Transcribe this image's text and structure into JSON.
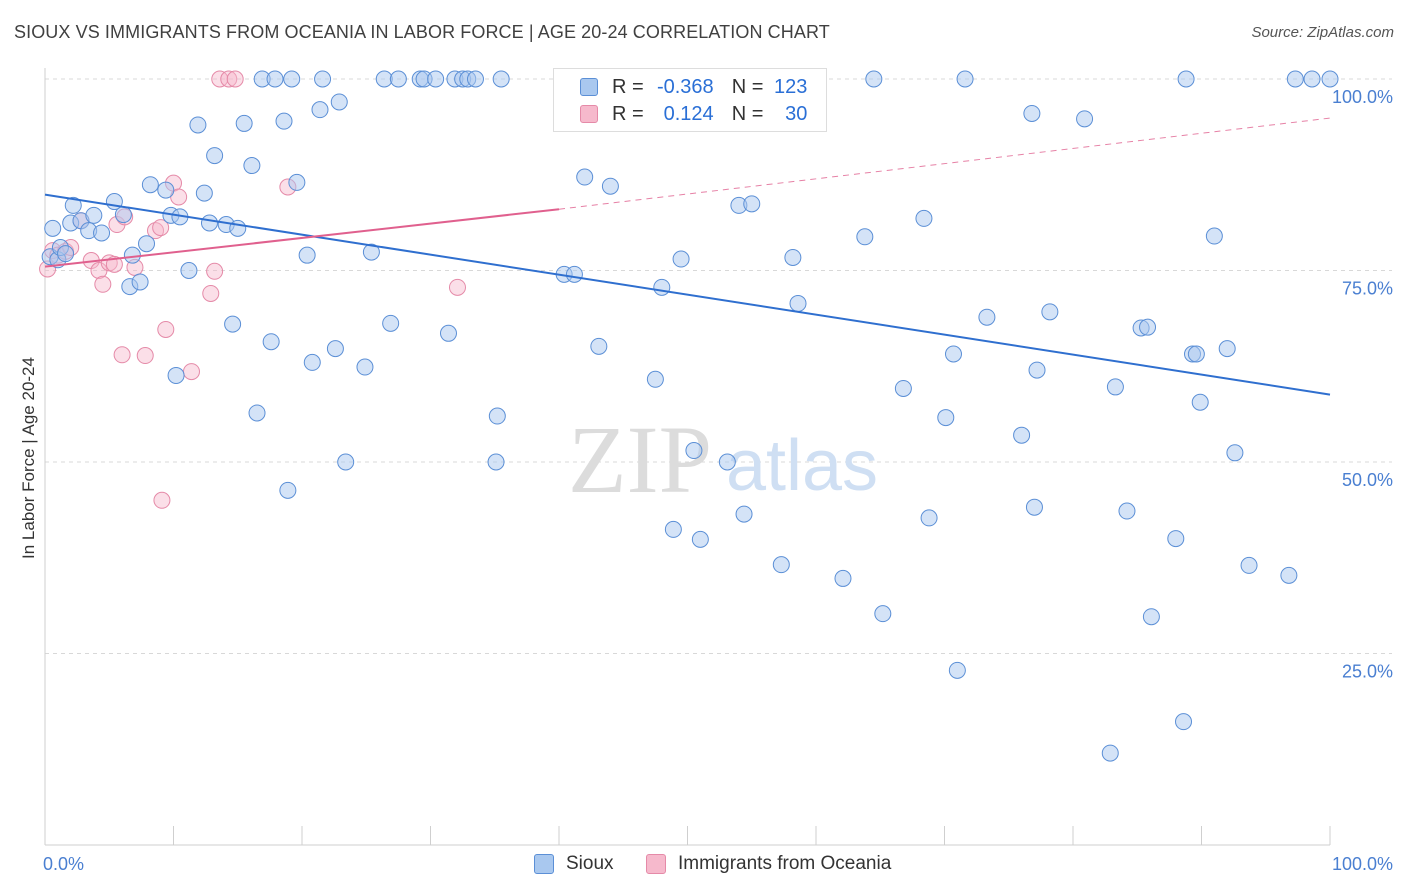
{
  "title": "SIOUX VS IMMIGRANTS FROM OCEANIA IN LABOR FORCE | AGE 20-24 CORRELATION CHART",
  "source": "Source: ZipAtlas.com",
  "watermark": {
    "zip": "ZIP",
    "atlas": "atlas"
  },
  "legend": {
    "rows": [
      {
        "r_label": "R =",
        "r_value": "-0.368",
        "n_label": "N =",
        "n_value": "123"
      },
      {
        "r_label": "R =",
        "r_value": "0.124",
        "n_label": "N =",
        "n_value": "30"
      }
    ]
  },
  "bottom_legend": {
    "sioux": "Sioux",
    "oceania": "Immigrants from Oceania"
  },
  "colors": {
    "sioux_fill": "#a9c8ef",
    "sioux_stroke": "#5b8fd6",
    "sioux_line": "#2f6fcf",
    "oceania_fill": "#f6b9cc",
    "oceania_stroke": "#e58aa8",
    "oceania_line": "#e0608e",
    "axis_text": "#4a7fd1",
    "grid": "#d8d8d8"
  },
  "chart_data": {
    "type": "scatter",
    "title": "SIOUX VS IMMIGRANTS FROM OCEANIA IN LABOR FORCE | AGE 20-24 CORRELATION CHART",
    "xlabel": "",
    "ylabel": "In Labor Force | Age 20-24",
    "xlim": [
      0,
      100
    ],
    "ylim": [
      0,
      100
    ],
    "x_tick_labels": [
      {
        "value": 0,
        "label": "0.0%"
      },
      {
        "value": 100,
        "label": "100.0%"
      }
    ],
    "y_tick_labels": [
      {
        "value": 100,
        "label": "100.0%"
      },
      {
        "value": 75,
        "label": "75.0%"
      },
      {
        "value": 50,
        "label": "50.0%"
      },
      {
        "value": 25,
        "label": "25.0%"
      }
    ],
    "grid": true,
    "series": [
      {
        "name": "Sioux",
        "R": -0.368,
        "N": 123,
        "trend": {
          "x": [
            0,
            100
          ],
          "y": [
            84.9,
            58.8
          ]
        },
        "points": [
          [
            0.4,
            76.8
          ],
          [
            0.6,
            80.5
          ],
          [
            1.0,
            76.4
          ],
          [
            1.2,
            78.0
          ],
          [
            1.6,
            77.2
          ],
          [
            2.0,
            81.2
          ],
          [
            2.2,
            83.5
          ],
          [
            2.8,
            81.5
          ],
          [
            3.4,
            80.2
          ],
          [
            3.8,
            82.2
          ],
          [
            4.4,
            79.9
          ],
          [
            5.4,
            84.0
          ],
          [
            6.1,
            82.3
          ],
          [
            6.6,
            72.9
          ],
          [
            6.8,
            77.0
          ],
          [
            7.4,
            73.5
          ],
          [
            7.9,
            78.5
          ],
          [
            8.2,
            86.2
          ],
          [
            9.4,
            85.5
          ],
          [
            9.8,
            82.2
          ],
          [
            10.2,
            61.3
          ],
          [
            10.5,
            82.0
          ],
          [
            11.2,
            75.0
          ],
          [
            11.9,
            94.0
          ],
          [
            12.4,
            85.1
          ],
          [
            12.8,
            81.2
          ],
          [
            13.2,
            90.0
          ],
          [
            14.1,
            81.0
          ],
          [
            14.6,
            68.0
          ],
          [
            15.0,
            80.5
          ],
          [
            15.5,
            94.2
          ],
          [
            16.1,
            88.7
          ],
          [
            16.5,
            56.4
          ],
          [
            16.9,
            100.0
          ],
          [
            17.6,
            65.7
          ],
          [
            17.9,
            100.0
          ],
          [
            18.6,
            94.5
          ],
          [
            18.9,
            46.3
          ],
          [
            19.2,
            100.0
          ],
          [
            19.6,
            86.5
          ],
          [
            20.4,
            77.0
          ],
          [
            20.8,
            63.0
          ],
          [
            21.4,
            96.0
          ],
          [
            21.6,
            100.0
          ],
          [
            22.6,
            64.8
          ],
          [
            22.9,
            97.0
          ],
          [
            23.4,
            50.0
          ],
          [
            24.9,
            62.4
          ],
          [
            25.4,
            77.4
          ],
          [
            26.4,
            100.0
          ],
          [
            26.9,
            68.1
          ],
          [
            27.5,
            100.0
          ],
          [
            29.2,
            100.0
          ],
          [
            29.5,
            100.0
          ],
          [
            30.4,
            100.0
          ],
          [
            31.4,
            66.8
          ],
          [
            31.9,
            100.0
          ],
          [
            32.5,
            100.0
          ],
          [
            32.9,
            100.0
          ],
          [
            33.5,
            100.0
          ],
          [
            35.5,
            100.0
          ],
          [
            35.2,
            56.0
          ],
          [
            35.1,
            50.0
          ],
          [
            40.4,
            74.5
          ],
          [
            41.2,
            74.5
          ],
          [
            42.0,
            87.2
          ],
          [
            43.1,
            65.1
          ],
          [
            44.0,
            86.0
          ],
          [
            47.5,
            60.8
          ],
          [
            47.8,
            100.0
          ],
          [
            48.0,
            72.8
          ],
          [
            48.9,
            41.2
          ],
          [
            49.5,
            76.5
          ],
          [
            50.5,
            51.5
          ],
          [
            51.0,
            39.9
          ],
          [
            53.1,
            50.0
          ],
          [
            54.0,
            83.5
          ],
          [
            54.4,
            43.2
          ],
          [
            54.6,
            100.0
          ],
          [
            55.0,
            83.7
          ],
          [
            57.3,
            36.6
          ],
          [
            58.2,
            76.7
          ],
          [
            58.6,
            70.7
          ],
          [
            62.1,
            34.8
          ],
          [
            63.8,
            79.4
          ],
          [
            64.5,
            100.0
          ],
          [
            65.2,
            30.2
          ],
          [
            66.8,
            59.6
          ],
          [
            68.4,
            81.8
          ],
          [
            68.8,
            42.7
          ],
          [
            70.1,
            55.8
          ],
          [
            70.7,
            64.1
          ],
          [
            71.0,
            22.8
          ],
          [
            71.6,
            100.0
          ],
          [
            73.3,
            68.9
          ],
          [
            76.0,
            53.5
          ],
          [
            76.8,
            95.5
          ],
          [
            77.0,
            44.1
          ],
          [
            77.2,
            62.0
          ],
          [
            78.2,
            69.6
          ],
          [
            80.9,
            94.8
          ],
          [
            82.9,
            12.0
          ],
          [
            83.3,
            59.8
          ],
          [
            84.2,
            43.6
          ],
          [
            85.3,
            67.5
          ],
          [
            85.8,
            67.6
          ],
          [
            86.1,
            29.8
          ],
          [
            88.0,
            40.0
          ],
          [
            88.8,
            100.0
          ],
          [
            88.6,
            16.1
          ],
          [
            89.3,
            64.1
          ],
          [
            89.6,
            64.1
          ],
          [
            89.9,
            57.8
          ],
          [
            91.0,
            79.5
          ],
          [
            92.0,
            64.8
          ],
          [
            92.6,
            51.2
          ],
          [
            93.7,
            36.5
          ],
          [
            96.8,
            35.2
          ],
          [
            97.3,
            100.0
          ],
          [
            98.6,
            100.0
          ],
          [
            100.0,
            100.0
          ],
          [
            54.2,
            100.0
          ],
          [
            41.0,
            100.0
          ]
        ]
      },
      {
        "name": "Immigrants from Oceania",
        "R": 0.124,
        "N": 30,
        "trend_solid": {
          "x": [
            0,
            40.0
          ],
          "y": [
            75.5,
            83.0
          ]
        },
        "trend_dashed": {
          "x": [
            40.0,
            100
          ],
          "y": [
            83.0,
            94.9
          ]
        },
        "points": [
          [
            0.2,
            75.2
          ],
          [
            0.6,
            77.6
          ],
          [
            1.0,
            77.0
          ],
          [
            1.6,
            77.5
          ],
          [
            2.0,
            78.0
          ],
          [
            2.8,
            81.5
          ],
          [
            3.6,
            76.3
          ],
          [
            4.2,
            75.0
          ],
          [
            4.5,
            73.2
          ],
          [
            5.0,
            76.0
          ],
          [
            5.4,
            75.8
          ],
          [
            5.6,
            81.0
          ],
          [
            6.0,
            64.0
          ],
          [
            6.2,
            82.0
          ],
          [
            7.0,
            75.4
          ],
          [
            7.8,
            63.9
          ],
          [
            8.6,
            80.2
          ],
          [
            9.0,
            80.6
          ],
          [
            9.1,
            45.0
          ],
          [
            9.4,
            67.3
          ],
          [
            10.0,
            86.4
          ],
          [
            10.4,
            84.6
          ],
          [
            11.4,
            61.8
          ],
          [
            12.9,
            72.0
          ],
          [
            13.2,
            74.9
          ],
          [
            13.6,
            100.0
          ],
          [
            14.3,
            100.0
          ],
          [
            14.8,
            100.0
          ],
          [
            18.9,
            85.9
          ],
          [
            32.1,
            72.8
          ]
        ]
      }
    ]
  }
}
